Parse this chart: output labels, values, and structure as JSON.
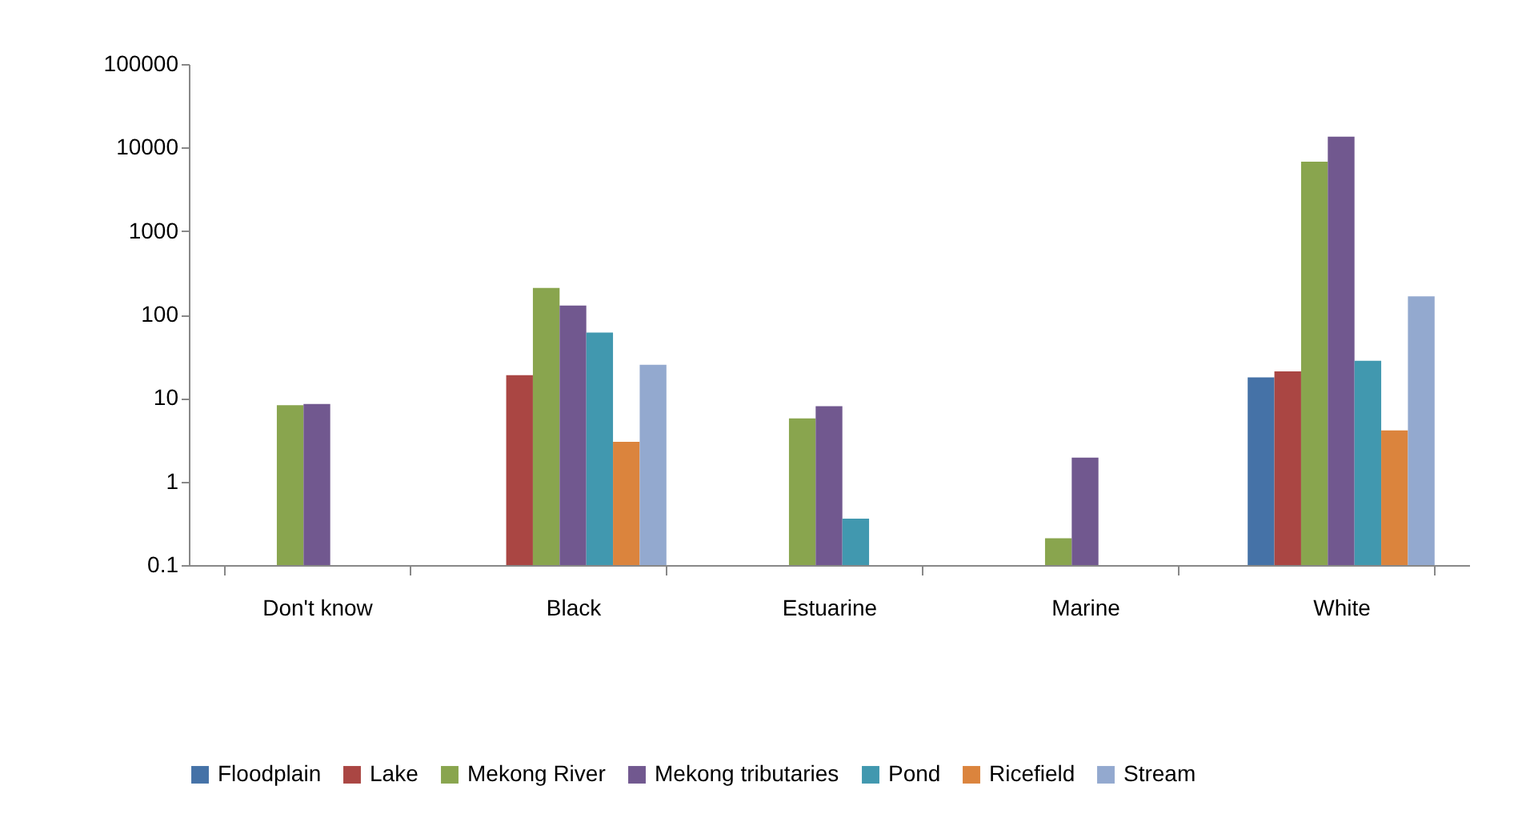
{
  "chart_data": {
    "type": "bar",
    "categories": [
      "Don't know",
      "Black",
      "Estuarine",
      "Marine",
      "White"
    ],
    "series": [
      {
        "name": "Floodplain",
        "color": "#4572a7",
        "values": [
          null,
          null,
          null,
          null,
          17.7
        ]
      },
      {
        "name": "Lake",
        "color": "#aa4643",
        "values": [
          null,
          18.8,
          null,
          null,
          20.9
        ]
      },
      {
        "name": "Mekong River",
        "color": "#89a54e",
        "values": [
          8.2,
          208,
          5.7,
          0.21,
          6760
        ]
      },
      {
        "name": "Mekong tributaries",
        "color": "#71588f",
        "values": [
          8.5,
          128,
          8,
          1.94,
          13500
        ]
      },
      {
        "name": "Pond",
        "color": "#4198af",
        "values": [
          null,
          61,
          0.36,
          null,
          28
        ]
      },
      {
        "name": "Ricefield",
        "color": "#db843d",
        "values": [
          null,
          3,
          null,
          null,
          4.1
        ]
      },
      {
        "name": "Stream",
        "color": "#93a9cf",
        "values": [
          null,
          25,
          null,
          null,
          165
        ]
      }
    ],
    "log": true,
    "ylim": [
      0.1,
      100000
    ],
    "yticks": [
      0.1,
      1,
      10,
      100,
      1000,
      10000,
      100000
    ],
    "grid": false,
    "legend": "bottom"
  }
}
